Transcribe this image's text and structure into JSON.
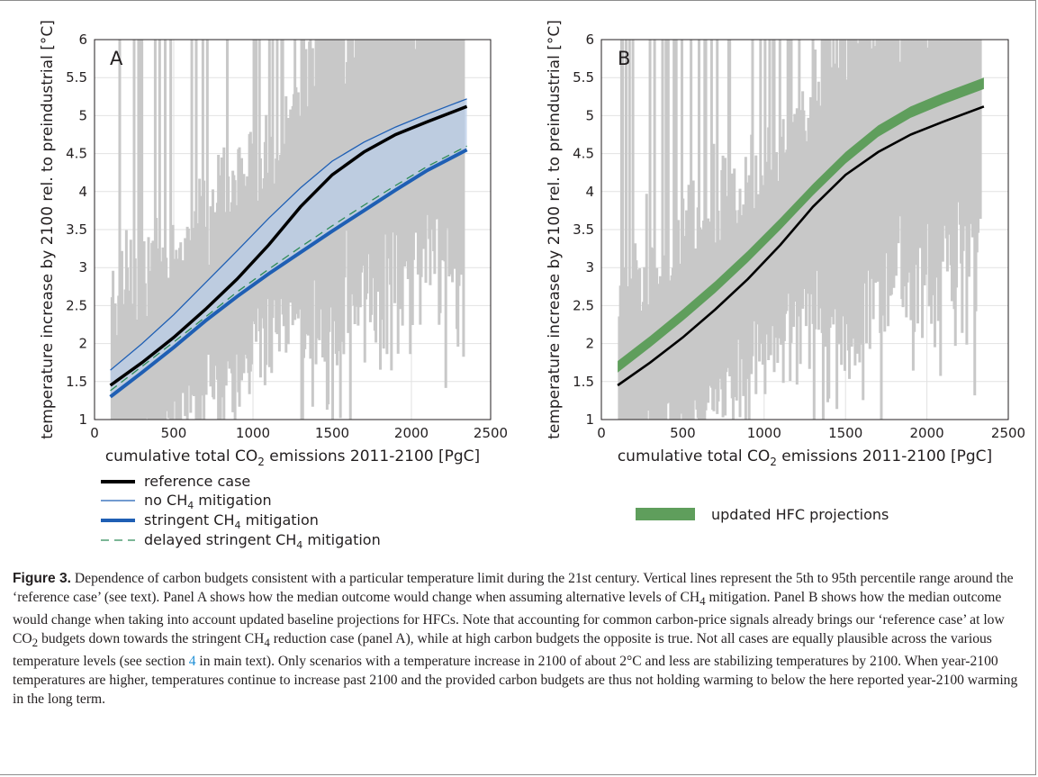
{
  "figure": {
    "panels": [
      "A",
      "B"
    ],
    "axes": {
      "ylabel": "temperature increase by 2100 rel. to preindustrial [°C]",
      "xlabel_prefix": "cumulative total CO",
      "xlabel_sub": "2",
      "xlabel_suffix": " emissions 2011-2100 [PgC]",
      "xticks": [
        "0",
        "500",
        "1000",
        "1500",
        "2000",
        "2500"
      ],
      "yticks": [
        "1",
        "1.5",
        "2",
        "2.5",
        "3",
        "3.5",
        "4",
        "4.5",
        "5",
        "5.5",
        "6"
      ]
    },
    "legend_a": [
      {
        "pre": "reference case",
        "sub": "",
        "post": ""
      },
      {
        "pre": "no CH",
        "sub": "4",
        "post": " mitigation"
      },
      {
        "pre": "stringent CH",
        "sub": "4",
        "post": " mitigation"
      },
      {
        "pre": "delayed stringent CH",
        "sub": "4",
        "post": " mitigation"
      }
    ],
    "legend_b": {
      "label": "updated HFC projections"
    }
  },
  "colors": {
    "reference": "#000000",
    "ch4_blue": "#1f5fb4",
    "band_fill": "#b9cde8",
    "delayed": "#2e8b57",
    "hfc_green": "#5f9e5c",
    "percentile_bars": "#c8c8c8",
    "grid": "#e2e2e2"
  },
  "chart_data": [
    {
      "type": "line",
      "panel": "A",
      "xlim": [
        0,
        2500
      ],
      "ylim": [
        1,
        6
      ],
      "grid": true,
      "x": [
        100,
        300,
        500,
        700,
        900,
        1100,
        1300,
        1500,
        1700,
        1900,
        2100,
        2350
      ],
      "series": [
        {
          "name": "reference case",
          "values": [
            1.45,
            1.75,
            2.08,
            2.45,
            2.85,
            3.3,
            3.8,
            4.22,
            4.52,
            4.75,
            4.92,
            5.12
          ]
        },
        {
          "name": "no CH4 mitigation",
          "values": [
            1.65,
            2.0,
            2.38,
            2.8,
            3.22,
            3.65,
            4.05,
            4.4,
            4.65,
            4.85,
            5.02,
            5.22
          ]
        },
        {
          "name": "stringent CH4 mitigation",
          "values": [
            1.3,
            1.62,
            1.95,
            2.3,
            2.62,
            2.92,
            3.2,
            3.48,
            3.75,
            4.02,
            4.28,
            4.55
          ]
        },
        {
          "name": "delayed stringent CH4 mitigation",
          "values": [
            1.38,
            1.7,
            2.02,
            2.35,
            2.68,
            2.98,
            3.27,
            3.55,
            3.82,
            4.08,
            4.33,
            4.6
          ]
        }
      ]
    },
    {
      "type": "line",
      "panel": "B",
      "xlim": [
        0,
        2500
      ],
      "ylim": [
        1,
        6
      ],
      "grid": true,
      "x": [
        100,
        300,
        500,
        700,
        900,
        1100,
        1300,
        1500,
        1700,
        1900,
        2100,
        2350
      ],
      "series": [
        {
          "name": "reference case",
          "values": [
            1.45,
            1.75,
            2.08,
            2.45,
            2.85,
            3.3,
            3.8,
            4.22,
            4.52,
            4.75,
            4.92,
            5.12
          ]
        },
        {
          "name": "updated HFC projections",
          "lower": [
            1.62,
            1.95,
            2.3,
            2.67,
            3.07,
            3.5,
            3.95,
            4.37,
            4.72,
            4.97,
            5.15,
            5.35
          ],
          "upper": [
            1.77,
            2.1,
            2.45,
            2.82,
            3.22,
            3.65,
            4.1,
            4.52,
            4.87,
            5.12,
            5.3,
            5.5
          ]
        }
      ]
    }
  ],
  "caption": {
    "label": "Figure 3.",
    "p1": " Dependence of carbon budgets consistent with a particular temperature limit during the 21st century. Vertical lines represent the 5th to 95th percentile range around the ‘reference case’ (see text). Panel A shows how the median outcome would change when assuming alternative levels of CH",
    "s1": "4",
    "p2": " mitigation. Panel B shows how the median outcome would change when taking into account updated baseline projections for HFCs. Note that accounting for common carbon-price signals already brings our ‘reference case’ at low CO",
    "s2": "2",
    "p3": " budgets down towards the stringent CH",
    "s3": "4",
    "p4": " reduction case (panel A), while at high carbon budgets the opposite is true. Not all cases are equally plausible across the various temperature levels (see section ",
    "link": "4",
    "p5": " in main text). Only scenarios with a temperature increase in 2100 of about 2°C and less are stabilizing temperatures by 2100. When year-2100 temperatures are higher, temperatures continue to increase past 2100 and the provided carbon budgets are thus not holding warming to below the here reported year-2100 warming in the long term."
  }
}
